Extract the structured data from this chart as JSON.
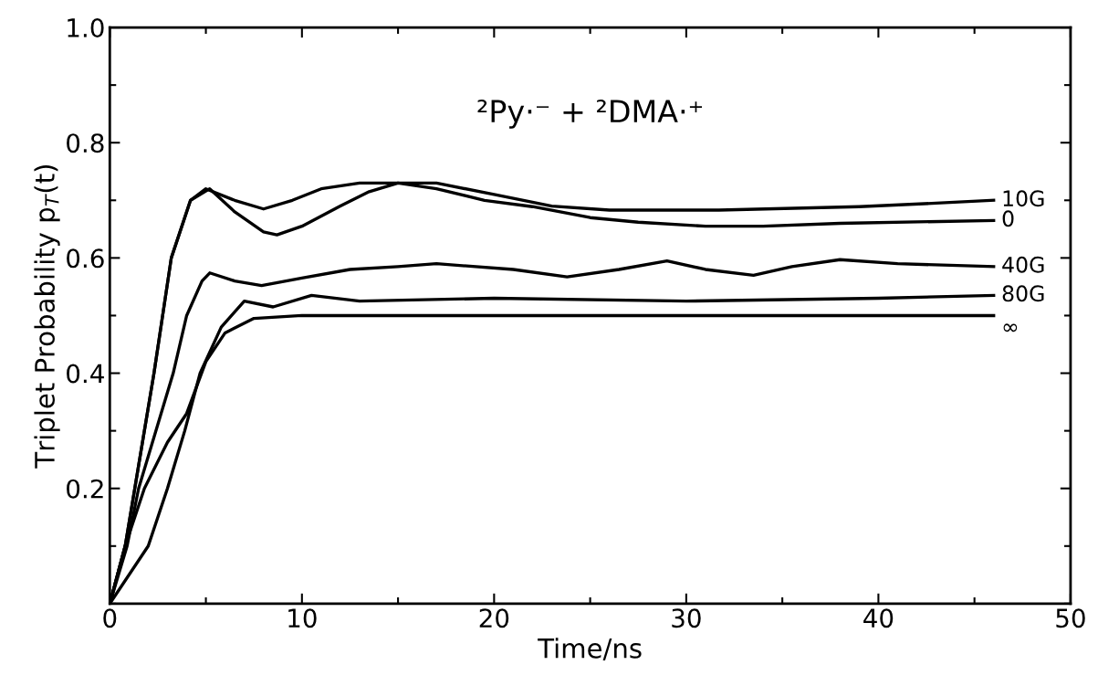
{
  "chart_data": {
    "type": "line",
    "title": "²Py·⁻ + ²DMA·⁺",
    "xlabel": "Time/ns",
    "ylabel": "Triplet Probability p$_{T}$(t)",
    "xlim": [
      0,
      50
    ],
    "ylim": [
      0,
      1.0
    ],
    "xticks": [
      0,
      10,
      20,
      30,
      40,
      50
    ],
    "yticks": [
      0.2,
      0.4,
      0.6,
      0.8,
      {
        "value": 1.0,
        "label": "1.0"
      }
    ],
    "grid": false,
    "legend": "right",
    "marker": "none",
    "line_style": "solid",
    "series": [
      {
        "name": "10G",
        "color": "#000000",
        "x": [
          0,
          0.8,
          1.3,
          2.3,
          3.2,
          4.2,
          5,
          6.5,
          8,
          9.5,
          11,
          13,
          17,
          20,
          23,
          26,
          31.7,
          39,
          43,
          46
        ],
        "values": [
          0,
          0.1,
          0.2,
          0.4,
          0.6,
          0.7,
          0.72,
          0.7,
          0.685,
          0.7,
          0.72,
          0.73,
          0.73,
          0.71,
          0.69,
          0.683,
          0.683,
          0.689,
          0.695,
          0.7
        ]
      },
      {
        "name": "0",
        "color": "#000000",
        "x": [
          0,
          0.8,
          1.3,
          2.3,
          3.2,
          4.2,
          5.2,
          6.5,
          8,
          8.7,
          10,
          12,
          13.5,
          15,
          17,
          19.5,
          22,
          25,
          27.5,
          31,
          34,
          38,
          46
        ],
        "values": [
          0,
          0.1,
          0.2,
          0.4,
          0.6,
          0.7,
          0.72,
          0.68,
          0.645,
          0.64,
          0.655,
          0.69,
          0.715,
          0.73,
          0.72,
          0.7,
          0.689,
          0.67,
          0.662,
          0.655,
          0.655,
          0.66,
          0.665
        ]
      },
      {
        "name": "40G",
        "color": "#000000",
        "x": [
          0,
          0.9,
          1.5,
          3.3,
          4,
          4.8,
          5.2,
          6.5,
          7.9,
          10,
          12.5,
          15,
          17,
          21,
          23.8,
          26.5,
          29,
          31,
          33.5,
          35.5,
          38,
          41,
          46
        ],
        "values": [
          0,
          0.1,
          0.2,
          0.4,
          0.5,
          0.56,
          0.574,
          0.56,
          0.552,
          0.565,
          0.58,
          0.585,
          0.59,
          0.58,
          0.567,
          0.58,
          0.595,
          0.58,
          0.57,
          0.585,
          0.597,
          0.59,
          0.585
        ]
      },
      {
        "name": "80G",
        "color": "#000000",
        "x": [
          0,
          2,
          3,
          3.9,
          4.7,
          5.8,
          7,
          8.5,
          10.5,
          13,
          20,
          30,
          40,
          46
        ],
        "values": [
          0,
          0.1,
          0.2,
          0.3,
          0.4,
          0.48,
          0.525,
          0.515,
          0.535,
          0.525,
          0.53,
          0.525,
          0.53,
          0.535
        ]
      },
      {
        "name": "∞",
        "color": "#000000",
        "x": [
          0,
          0.8,
          1.8,
          3,
          4,
          5,
          6,
          7.5,
          10,
          46
        ],
        "values": [
          0,
          0.1,
          0.2,
          0.28,
          0.33,
          0.42,
          0.47,
          0.495,
          0.5,
          0.5
        ]
      }
    ]
  }
}
